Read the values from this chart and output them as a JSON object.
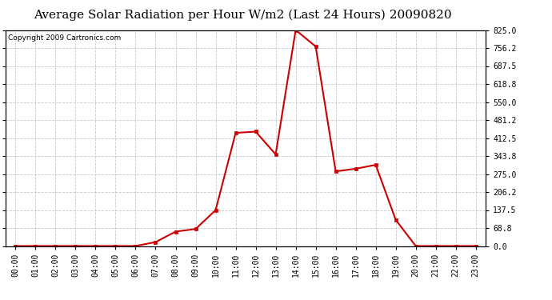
{
  "title": "Average Solar Radiation per Hour W/m2 (Last 24 Hours) 20090820",
  "copyright": "Copyright 2009 Cartronics.com",
  "hours": [
    "00:00",
    "01:00",
    "02:00",
    "03:00",
    "04:00",
    "05:00",
    "06:00",
    "07:00",
    "08:00",
    "09:00",
    "10:00",
    "11:00",
    "12:00",
    "13:00",
    "14:00",
    "15:00",
    "16:00",
    "17:00",
    "18:00",
    "19:00",
    "20:00",
    "21:00",
    "22:00",
    "23:00"
  ],
  "values": [
    0,
    0,
    0,
    0,
    0,
    0,
    0,
    15,
    55,
    65,
    137,
    432,
    437,
    350,
    825,
    762,
    285,
    295,
    310,
    100,
    0,
    0,
    0,
    0
  ],
  "line_color": "#cc0000",
  "marker": "s",
  "marker_size": 3,
  "bg_color": "#ffffff",
  "plot_bg_color": "#ffffff",
  "grid_color": "#bbbbbb",
  "yticks": [
    0.0,
    68.8,
    137.5,
    206.2,
    275.0,
    343.8,
    412.5,
    481.2,
    550.0,
    618.8,
    687.5,
    756.2,
    825.0
  ],
  "ymin": 0.0,
  "ymax": 825.0,
  "title_fontsize": 11,
  "copyright_fontsize": 6.5,
  "tick_fontsize": 7
}
